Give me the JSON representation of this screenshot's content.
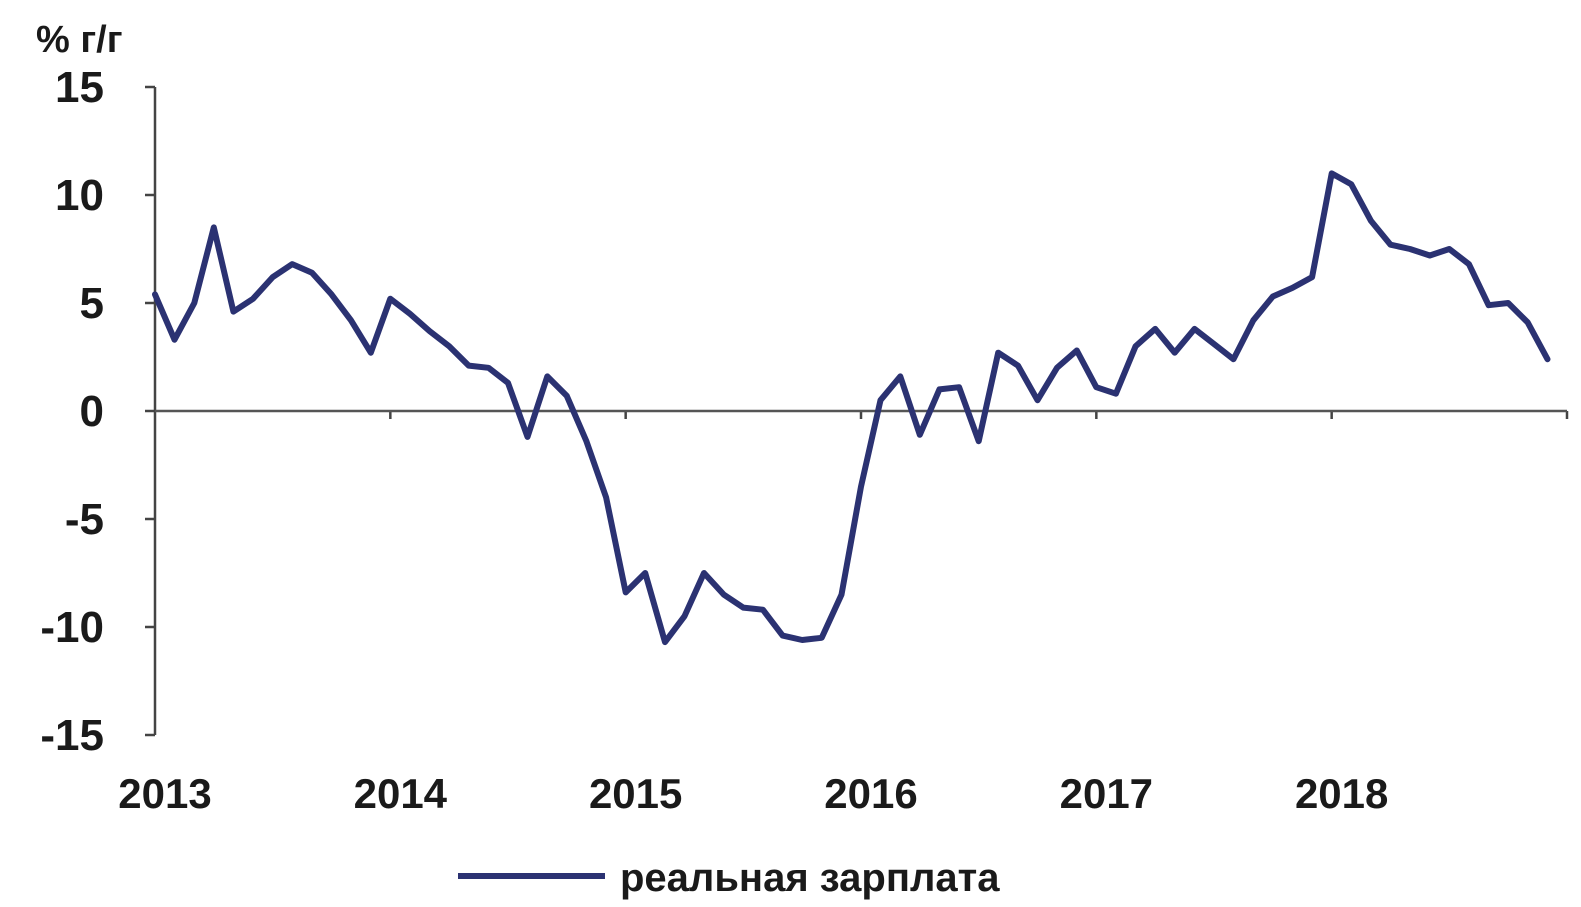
{
  "chart_data": {
    "type": "line",
    "ylabel": "% г/г",
    "ylim": [
      -15,
      15
    ],
    "yticks": [
      "15",
      "10",
      "5",
      "0",
      "-5",
      "-10",
      "-15"
    ],
    "yticks_values": [
      15,
      10,
      5,
      0,
      -5,
      -10,
      -15
    ],
    "xlim": [
      2013.0,
      2019.0
    ],
    "xticks": [
      "2013",
      "2014",
      "2015",
      "2016",
      "2017",
      "2018"
    ],
    "xticks_values": [
      2013,
      2014,
      2015,
      2016,
      2017,
      2018
    ],
    "grid": false,
    "legend_position": "bottom-center",
    "series": [
      {
        "name": "реальная зарплата",
        "color": "#2b3272",
        "x": [
          2013.0,
          2013.083,
          2013.167,
          2013.25,
          2013.333,
          2013.417,
          2013.5,
          2013.583,
          2013.667,
          2013.75,
          2013.833,
          2013.917,
          2014.0,
          2014.083,
          2014.167,
          2014.25,
          2014.333,
          2014.417,
          2014.5,
          2014.583,
          2014.667,
          2014.75,
          2014.833,
          2014.917,
          2015.0,
          2015.083,
          2015.167,
          2015.25,
          2015.333,
          2015.417,
          2015.5,
          2015.583,
          2015.667,
          2015.75,
          2015.833,
          2015.917,
          2016.0,
          2016.083,
          2016.167,
          2016.25,
          2016.333,
          2016.417,
          2016.5,
          2016.583,
          2016.667,
          2016.75,
          2016.833,
          2016.917,
          2017.0,
          2017.083,
          2017.167,
          2017.25,
          2017.333,
          2017.417,
          2017.5,
          2017.583,
          2017.667,
          2017.75,
          2017.833,
          2017.917,
          2018.0,
          2018.083,
          2018.167,
          2018.25,
          2018.333,
          2018.417,
          2018.5,
          2018.583,
          2018.667,
          2018.75,
          2018.833,
          2018.917
        ],
        "y": [
          5.4,
          3.3,
          5.0,
          8.5,
          4.6,
          5.2,
          6.2,
          6.8,
          6.4,
          5.4,
          4.2,
          2.7,
          5.2,
          4.5,
          3.7,
          3.0,
          2.1,
          2.0,
          1.3,
          -1.2,
          1.6,
          0.7,
          -1.4,
          -4.0,
          -8.4,
          -7.5,
          -10.7,
          -9.5,
          -7.5,
          -8.5,
          -9.1,
          -9.2,
          -10.4,
          -10.6,
          -10.5,
          -8.5,
          -3.5,
          0.5,
          1.6,
          -1.1,
          1.0,
          1.1,
          -1.4,
          2.7,
          2.1,
          0.5,
          2.0,
          2.8,
          1.1,
          0.8,
          3.0,
          3.8,
          2.7,
          3.8,
          3.1,
          2.4,
          4.2,
          5.3,
          5.7,
          6.2,
          11.0,
          10.5,
          8.8,
          7.7,
          7.5,
          7.2,
          7.5,
          6.8,
          4.9,
          5.0,
          4.1,
          2.4
        ]
      }
    ]
  }
}
